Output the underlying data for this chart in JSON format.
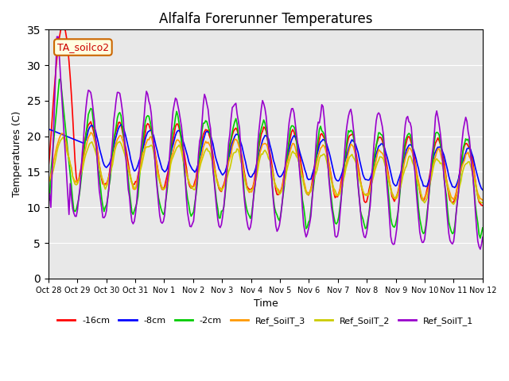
{
  "title": "Alfalfa Forerunner Temperatures",
  "xlabel": "Time",
  "ylabel": "Temperatures (C)",
  "ylim": [
    0,
    35
  ],
  "yticks": [
    0,
    5,
    10,
    15,
    20,
    25,
    30,
    35
  ],
  "background_color": "#e8e8e8",
  "plot_bg_color": "#e8e8e8",
  "legend_label": "TA_soilco2",
  "series": {
    "-16cm": {
      "color": "#ff0000"
    },
    "-8cm": {
      "color": "#0000ff"
    },
    "-2cm": {
      "color": "#00cc00"
    },
    "Ref_SoilT_3": {
      "color": "#ff9900"
    },
    "Ref_SoilT_2": {
      "color": "#cccc00"
    },
    "Ref_SoilT_1": {
      "color": "#9900cc"
    }
  },
  "xtick_labels": [
    "Oct 28",
    "Oct 29",
    "Oct 30",
    "Oct 31",
    "Nov 1",
    "Nov 2",
    "Nov 3",
    "Nov 4",
    "Nov 5",
    "Nov 6",
    "Nov 7",
    "Nov 8",
    "Nov 9",
    "Nov 10",
    "Nov 11",
    "Nov 12"
  ],
  "n_days": 15,
  "pts_per_day": 24
}
